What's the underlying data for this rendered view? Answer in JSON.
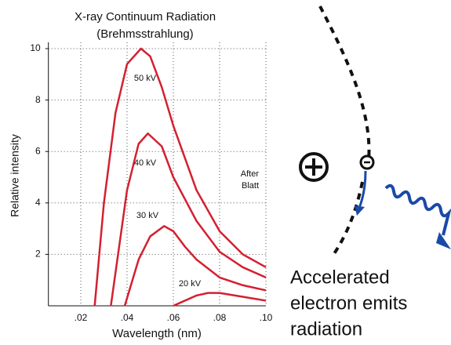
{
  "chart_data": {
    "type": "line",
    "title": [
      "X-ray Continuum Radiation",
      "(Brehmsstrahlung)"
    ],
    "xlabel": "Wavelength (nm)",
    "ylabel": "Relative intensity",
    "xlim": [
      0.006,
      0.1
    ],
    "ylim": [
      0,
      10
    ],
    "xticks": [
      {
        "value": 0.02,
        "label": ".02"
      },
      {
        "value": 0.04,
        "label": ".04"
      },
      {
        "value": 0.06,
        "label": ".06"
      },
      {
        "value": 0.08,
        "label": ".08"
      },
      {
        "value": 0.1,
        "label": ".10"
      }
    ],
    "yticks": [
      2,
      4,
      6,
      8,
      10
    ],
    "grid": true,
    "annotation": [
      "After",
      "Blatt"
    ],
    "series": [
      {
        "name": "50 kV",
        "color": "#d42030",
        "x": [
          0.026,
          0.03,
          0.035,
          0.04,
          0.046,
          0.05,
          0.055,
          0.06,
          0.07,
          0.08,
          0.09,
          0.1
        ],
        "values": [
          0,
          4,
          7.5,
          9.4,
          10,
          9.7,
          8.5,
          7,
          4.5,
          2.9,
          2,
          1.5
        ]
      },
      {
        "name": "40 kV",
        "color": "#d42030",
        "x": [
          0.033,
          0.04,
          0.045,
          0.049,
          0.055,
          0.06,
          0.07,
          0.08,
          0.09,
          0.1
        ],
        "values": [
          0,
          4.5,
          6.3,
          6.7,
          6.2,
          5,
          3.3,
          2.1,
          1.5,
          1.1
        ]
      },
      {
        "name": "30 kV",
        "color": "#d42030",
        "x": [
          0.039,
          0.045,
          0.05,
          0.056,
          0.06,
          0.065,
          0.07,
          0.08,
          0.09,
          0.1
        ],
        "values": [
          0,
          1.8,
          2.7,
          3.1,
          2.9,
          2.3,
          1.8,
          1.1,
          0.8,
          0.6
        ]
      },
      {
        "name": "20 kV",
        "color": "#d42030",
        "x": [
          0.06,
          0.065,
          0.07,
          0.075,
          0.08,
          0.09,
          0.1
        ],
        "values": [
          0,
          0.2,
          0.4,
          0.5,
          0.5,
          0.35,
          0.2
        ]
      }
    ]
  },
  "diagram": {
    "caption": [
      "Accelerated",
      "electron emits",
      "radiation"
    ]
  }
}
